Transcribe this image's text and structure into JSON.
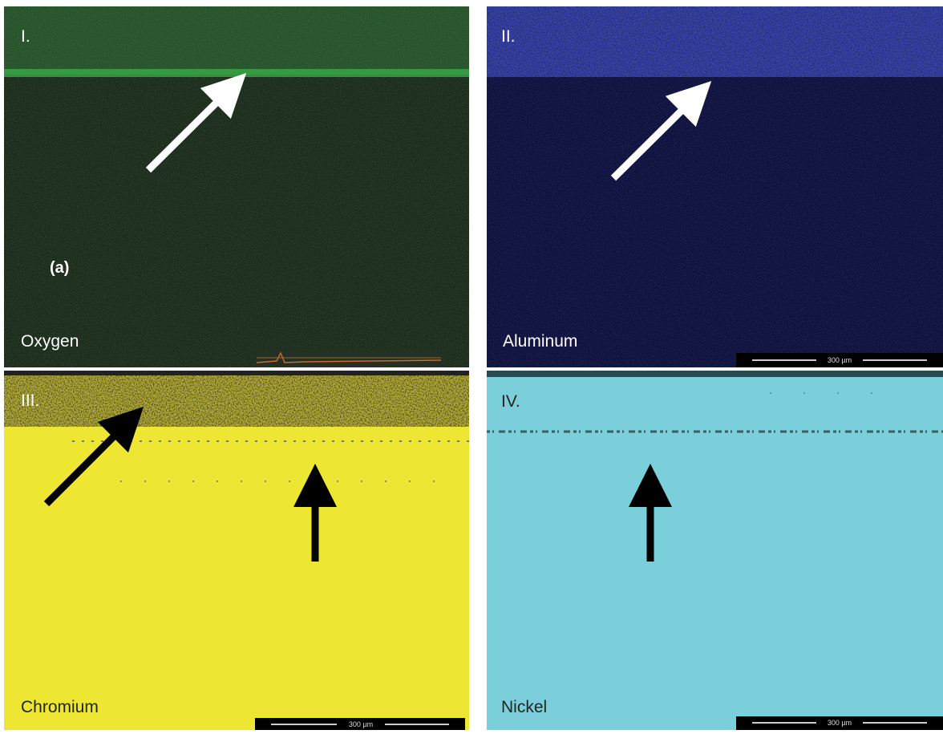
{
  "panels": [
    {
      "numeral": "I.",
      "element": "Oxygen",
      "label": "(a)"
    },
    {
      "numeral": "II.",
      "element": "Aluminum",
      "scale_bar": "300 µm"
    },
    {
      "numeral": "III.",
      "element": "Chromium",
      "scale_bar": "300 µm"
    },
    {
      "numeral": "IV.",
      "element": "Nickel",
      "scale_bar": "300 µm"
    }
  ]
}
